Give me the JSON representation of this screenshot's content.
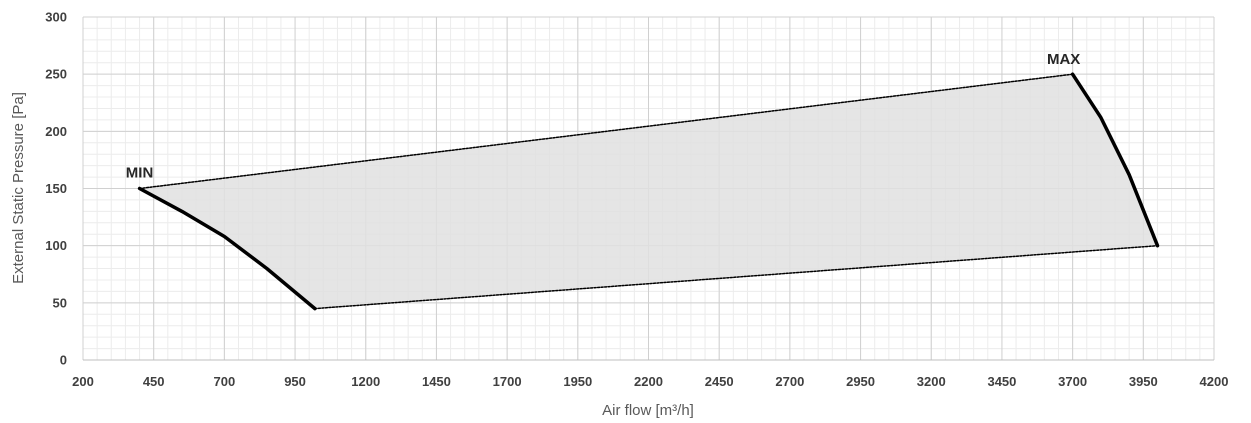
{
  "chart_data": {
    "type": "area",
    "title": "",
    "xlabel": "Air flow [m³/h]",
    "ylabel": "External Static Pressure [Pa]",
    "xlim": [
      200,
      4200
    ],
    "ylim": [
      0,
      300
    ],
    "x_ticks": [
      "200",
      "450",
      "700",
      "950",
      "1200",
      "1450",
      "1700",
      "1950",
      "2200",
      "2450",
      "2700",
      "2950",
      "3200",
      "3450",
      "3700",
      "3950",
      "4200"
    ],
    "y_ticks": [
      "0",
      "50",
      "100",
      "150",
      "200",
      "250",
      "300"
    ],
    "grid": true,
    "legend": "none",
    "colors": {
      "fill": "#e0e0e0",
      "curve": "#000000",
      "boundary": "#000000",
      "grid_major": "#d0d0d0",
      "grid_minor": "#ececec",
      "axis": "#bfbfbf"
    },
    "series": [
      {
        "role": "min-curve",
        "points": [
          [
            400,
            150
          ],
          [
            550,
            130
          ],
          [
            700,
            108
          ],
          [
            850,
            80
          ],
          [
            1020,
            45
          ]
        ]
      },
      {
        "role": "max-curve",
        "points": [
          [
            3700,
            250
          ],
          [
            3800,
            212
          ],
          [
            3900,
            162
          ],
          [
            4000,
            100
          ]
        ]
      },
      {
        "role": "upper-boundary",
        "points": [
          [
            400,
            150
          ],
          [
            3700,
            250
          ]
        ]
      },
      {
        "role": "lower-boundary",
        "points": [
          [
            1020,
            45
          ],
          [
            4000,
            100
          ]
        ]
      }
    ],
    "annotations": [
      {
        "text": "MIN",
        "x": 400,
        "y": 150
      },
      {
        "text": "MAX",
        "x": 3700,
        "y": 250
      }
    ]
  }
}
